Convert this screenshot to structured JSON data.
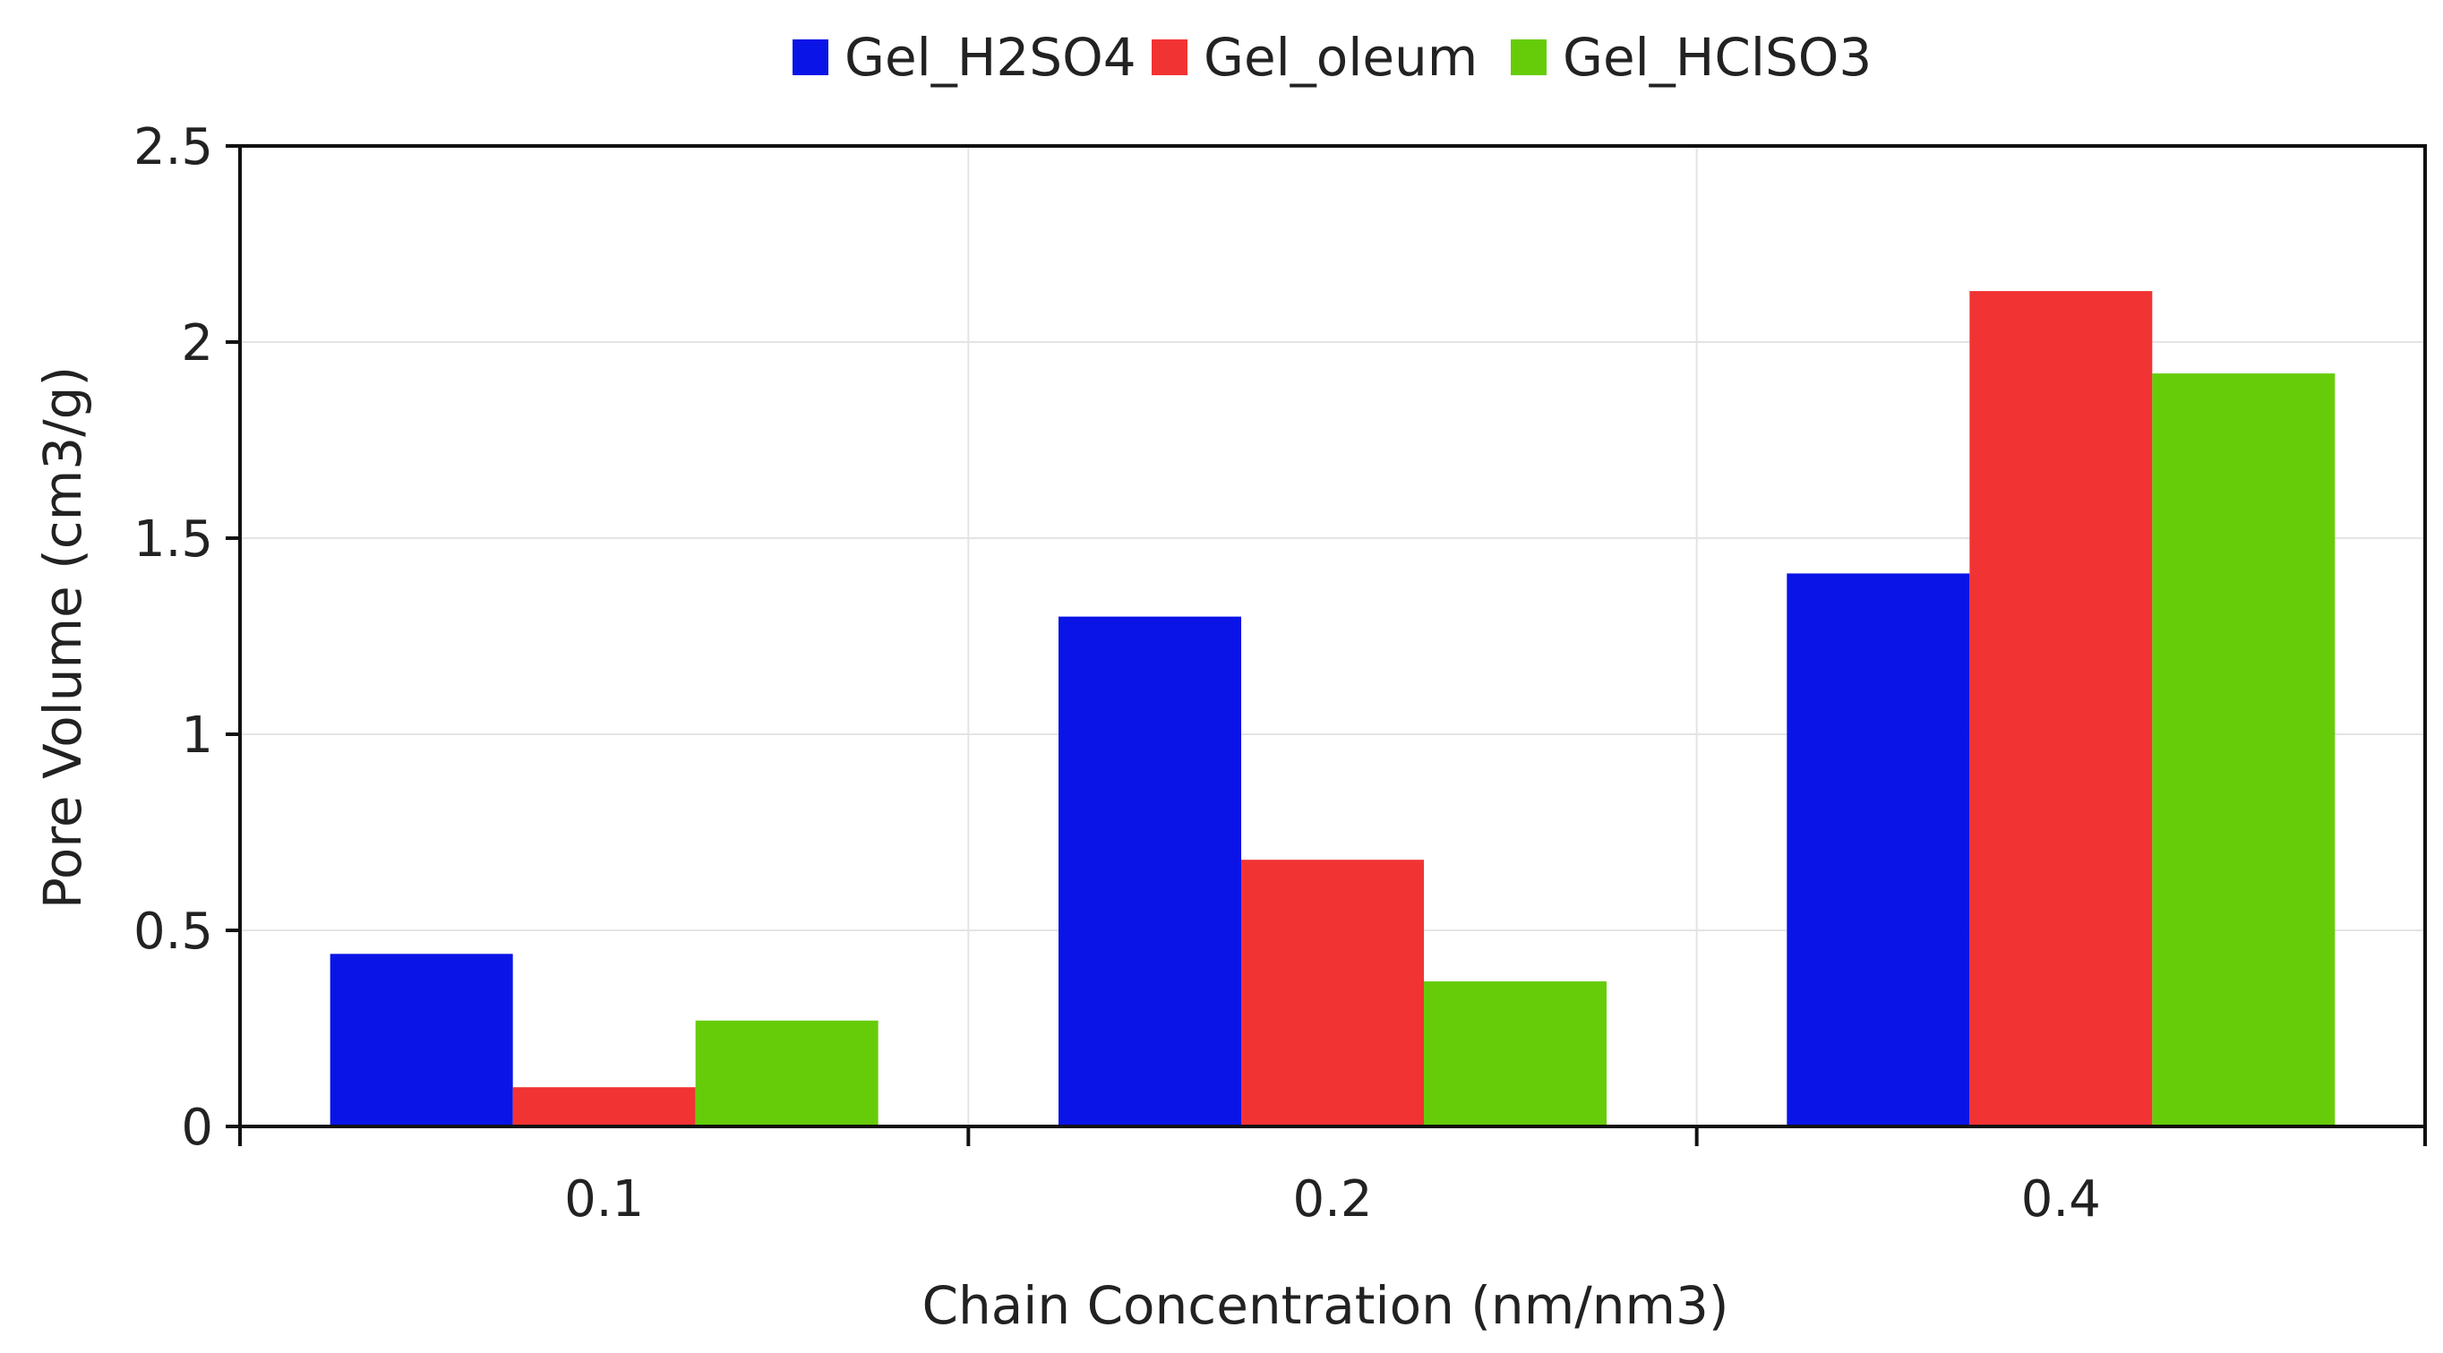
{
  "chart_data": {
    "type": "bar",
    "title": "",
    "xlabel": "Chain Concentration (nm/nm3)",
    "ylabel": "Pore Volume (cm3/g)",
    "categories": [
      "0.1",
      "0.2",
      "0.4"
    ],
    "series": [
      {
        "name": "Gel_H2SO4",
        "color": "#0a14e6",
        "values": [
          0.44,
          1.3,
          1.41
        ]
      },
      {
        "name": "Gel_oleum",
        "color": "#f23333",
        "values": [
          0.1,
          0.68,
          2.13
        ]
      },
      {
        "name": "Gel_HClSO3",
        "color": "#66cc0a",
        "values": [
          0.27,
          0.37,
          1.92
        ]
      }
    ],
    "ylim": [
      0,
      2.5
    ],
    "yticks": [
      0,
      0.5,
      1,
      1.5,
      2,
      2.5
    ],
    "ytick_labels": [
      "0",
      "0.5",
      "1",
      "1.5",
      "2",
      "2.5"
    ],
    "grid": true,
    "legend_position": "top-center"
  }
}
